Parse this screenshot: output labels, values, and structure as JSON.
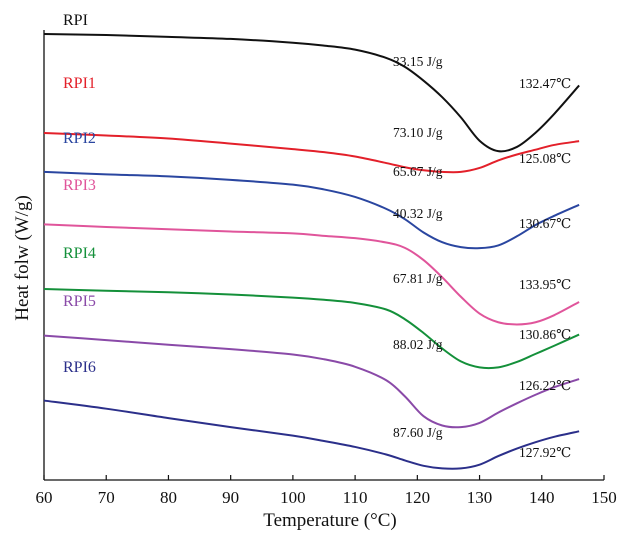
{
  "chart_data": {
    "type": "line",
    "xlabel": "Temperature (°C)",
    "ylabel": "Heat folw (W/g)",
    "xlim": [
      60,
      150
    ],
    "x_ticks": [
      "60",
      "70",
      "80",
      "90",
      "100",
      "110",
      "120",
      "130",
      "140",
      "150"
    ],
    "y_ticks_shown": false,
    "grid": false,
    "legend": "inline labels at left of each curve",
    "x": [
      60,
      70,
      80,
      90,
      100,
      105,
      110,
      115,
      118,
      121,
      124,
      127,
      130,
      133,
      136,
      139,
      142,
      146
    ],
    "series": [
      {
        "name": "RPI",
        "color": "#111111",
        "enthalpy": "33.15 J/g",
        "peak_temp": "132.47℃",
        "values": [
          0.0,
          -0.007,
          -0.02,
          -0.034,
          -0.06,
          -0.08,
          -0.108,
          -0.165,
          -0.227,
          -0.322,
          -0.436,
          -0.575,
          -0.736,
          -0.808,
          -0.779,
          -0.681,
          -0.551,
          -0.355
        ]
      },
      {
        "name": "RPI1",
        "color": "#e3202a",
        "enthalpy": "73.10 J/g",
        "peak_temp": "125.08℃",
        "values": [
          -0.683,
          -0.7,
          -0.721,
          -0.756,
          -0.794,
          -0.815,
          -0.845,
          -0.89,
          -0.919,
          -0.94,
          -0.951,
          -0.951,
          -0.924,
          -0.872,
          -0.831,
          -0.798,
          -0.765,
          -0.739
        ]
      },
      {
        "name": "RPI2",
        "color": "#2a46a0",
        "enthalpy": "65.67 J/g",
        "peak_temp": "130.67℃",
        "values": [
          -0.951,
          -0.968,
          -0.982,
          -1.006,
          -1.039,
          -1.072,
          -1.124,
          -1.206,
          -1.277,
          -1.369,
          -1.436,
          -1.47,
          -1.477,
          -1.458,
          -1.395,
          -1.317,
          -1.254,
          -1.178
        ]
      },
      {
        "name": "RPI3",
        "color": "#e0559b",
        "enthalpy": "40.32 J/g",
        "peak_temp": "133.95℃",
        "values": [
          -1.313,
          -1.331,
          -1.347,
          -1.362,
          -1.375,
          -1.392,
          -1.408,
          -1.438,
          -1.475,
          -1.559,
          -1.678,
          -1.812,
          -1.928,
          -1.988,
          -2.003,
          -1.988,
          -1.939,
          -1.848
        ]
      },
      {
        "name": "RPI4",
        "color": "#14903a",
        "enthalpy": "67.81 J/g",
        "peak_temp": "130.86℃",
        "values": [
          -1.759,
          -1.771,
          -1.781,
          -1.797,
          -1.818,
          -1.833,
          -1.855,
          -1.9,
          -1.967,
          -2.062,
          -2.169,
          -2.258,
          -2.299,
          -2.299,
          -2.262,
          -2.206,
          -2.15,
          -2.073
        ]
      },
      {
        "name": "RPI5",
        "color": "#8a4aa8",
        "enthalpy": "88.02 J/g",
        "peak_temp": "126.22℃",
        "values": [
          -2.08,
          -2.111,
          -2.143,
          -2.173,
          -2.21,
          -2.243,
          -2.295,
          -2.388,
          -2.499,
          -2.636,
          -2.7,
          -2.711,
          -2.682,
          -2.611,
          -2.547,
          -2.488,
          -2.436,
          -2.38
        ]
      },
      {
        "name": "RPI6",
        "color": "#2b2f8a",
        "enthalpy": "87.60 J/g",
        "peak_temp": "127.92℃",
        "values": [
          -2.528,
          -2.584,
          -2.649,
          -2.711,
          -2.77,
          -2.807,
          -2.848,
          -2.9,
          -2.941,
          -2.978,
          -2.996,
          -2.996,
          -2.97,
          -2.911,
          -2.859,
          -2.815,
          -2.778,
          -2.74
        ]
      }
    ]
  }
}
